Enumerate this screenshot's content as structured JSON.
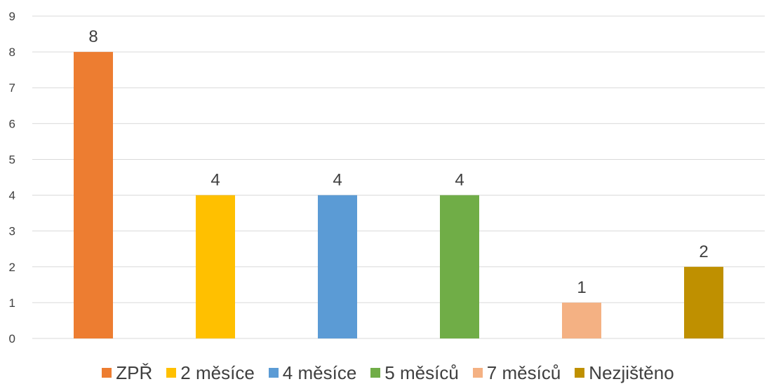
{
  "chart_data": {
    "type": "bar",
    "categories": [
      "ZPŘ",
      "2 měsíce",
      "4 měsíce",
      "5 měsíců",
      "7 měsíců",
      "Nezjištěno"
    ],
    "values": [
      8,
      4,
      4,
      4,
      1,
      2
    ],
    "colors": [
      "#ED7D31",
      "#FFC000",
      "#5B9BD5",
      "#70AD47",
      "#F4B183",
      "#BF9000"
    ],
    "ylim": [
      0,
      9
    ],
    "yticks": [
      "0",
      "1",
      "2",
      "3",
      "4",
      "5",
      "6",
      "7",
      "8",
      "9"
    ],
    "data_labels": [
      "8",
      "4",
      "4",
      "4",
      "1",
      "2"
    ],
    "grid": true,
    "legend_position": "bottom",
    "gridline_color": "#d9d9d9",
    "text_color": "#3f3f3f"
  }
}
